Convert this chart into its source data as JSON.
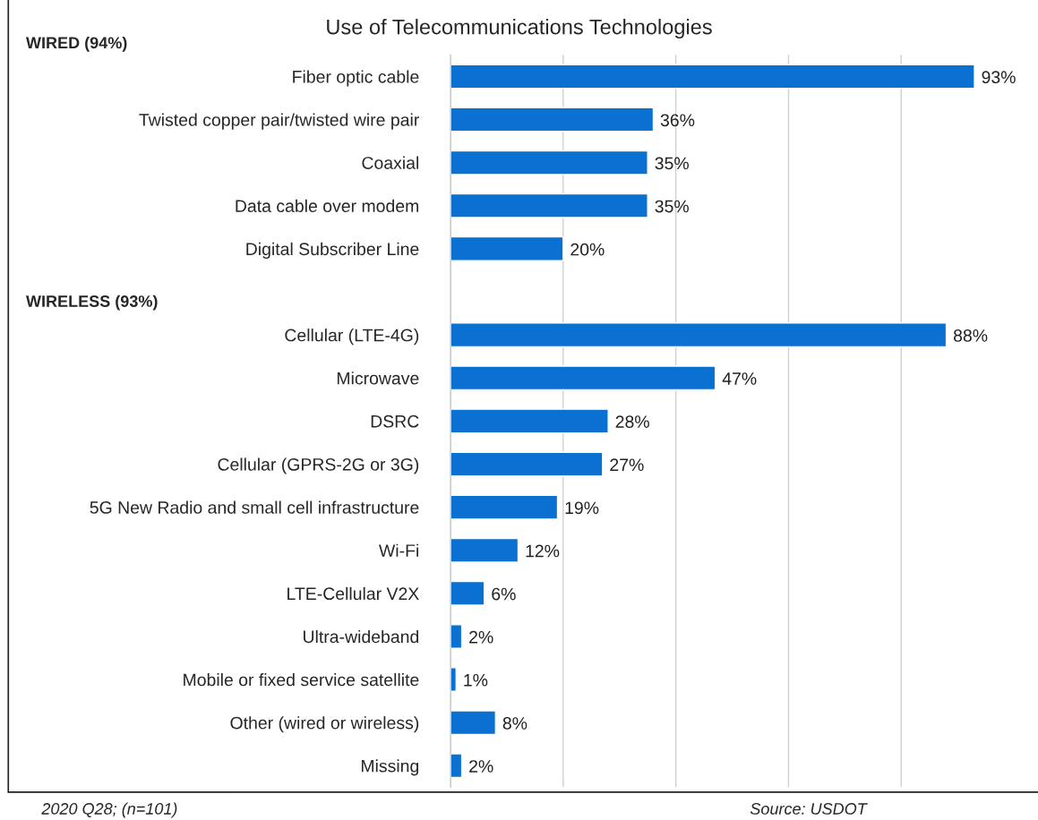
{
  "chart_data": {
    "type": "bar",
    "orientation": "horizontal",
    "title": "Use of Telecommunications Technologies",
    "categories": [
      "Fiber optic cable",
      "Twisted copper pair/twisted wire pair",
      "Coaxial",
      "Data cable over modem",
      "Digital Subscriber Line",
      null,
      "Cellular (LTE-4G)",
      "Microwave",
      "DSRC",
      "Cellular (GPRS-2G or 3G)",
      "5G New Radio and small cell infrastructure",
      "Wi-Fi",
      "LTE-Cellular V2X",
      "Ultra-wideband",
      "Mobile or fixed service satellite",
      "Other (wired or wireless)",
      "Missing"
    ],
    "values": [
      93,
      36,
      35,
      35,
      20,
      null,
      88,
      47,
      28,
      27,
      19,
      12,
      6,
      2,
      1,
      8,
      2
    ],
    "value_labels": [
      "93%",
      "36%",
      "35%",
      "35%",
      "20%",
      null,
      "88%",
      "47%",
      "28%",
      "27%",
      "19%",
      "12%",
      "6%",
      "2%",
      "1%",
      "8%",
      "2%"
    ],
    "color": "#0a70d2",
    "xticks": [
      {
        "value": 0,
        "label": null
      },
      {
        "value": 20,
        "label": null
      },
      {
        "value": 40,
        "label": null
      },
      {
        "value": 60,
        "label": null
      },
      {
        "value": 80,
        "label": null
      }
    ],
    "grid": "x",
    "tick_labels": "y",
    "legend": false,
    "annotations": [
      "WIRED (94%)",
      "WIRELESS (93%)",
      "2020 Q28; (n=101)",
      "Source: USDOT"
    ]
  }
}
